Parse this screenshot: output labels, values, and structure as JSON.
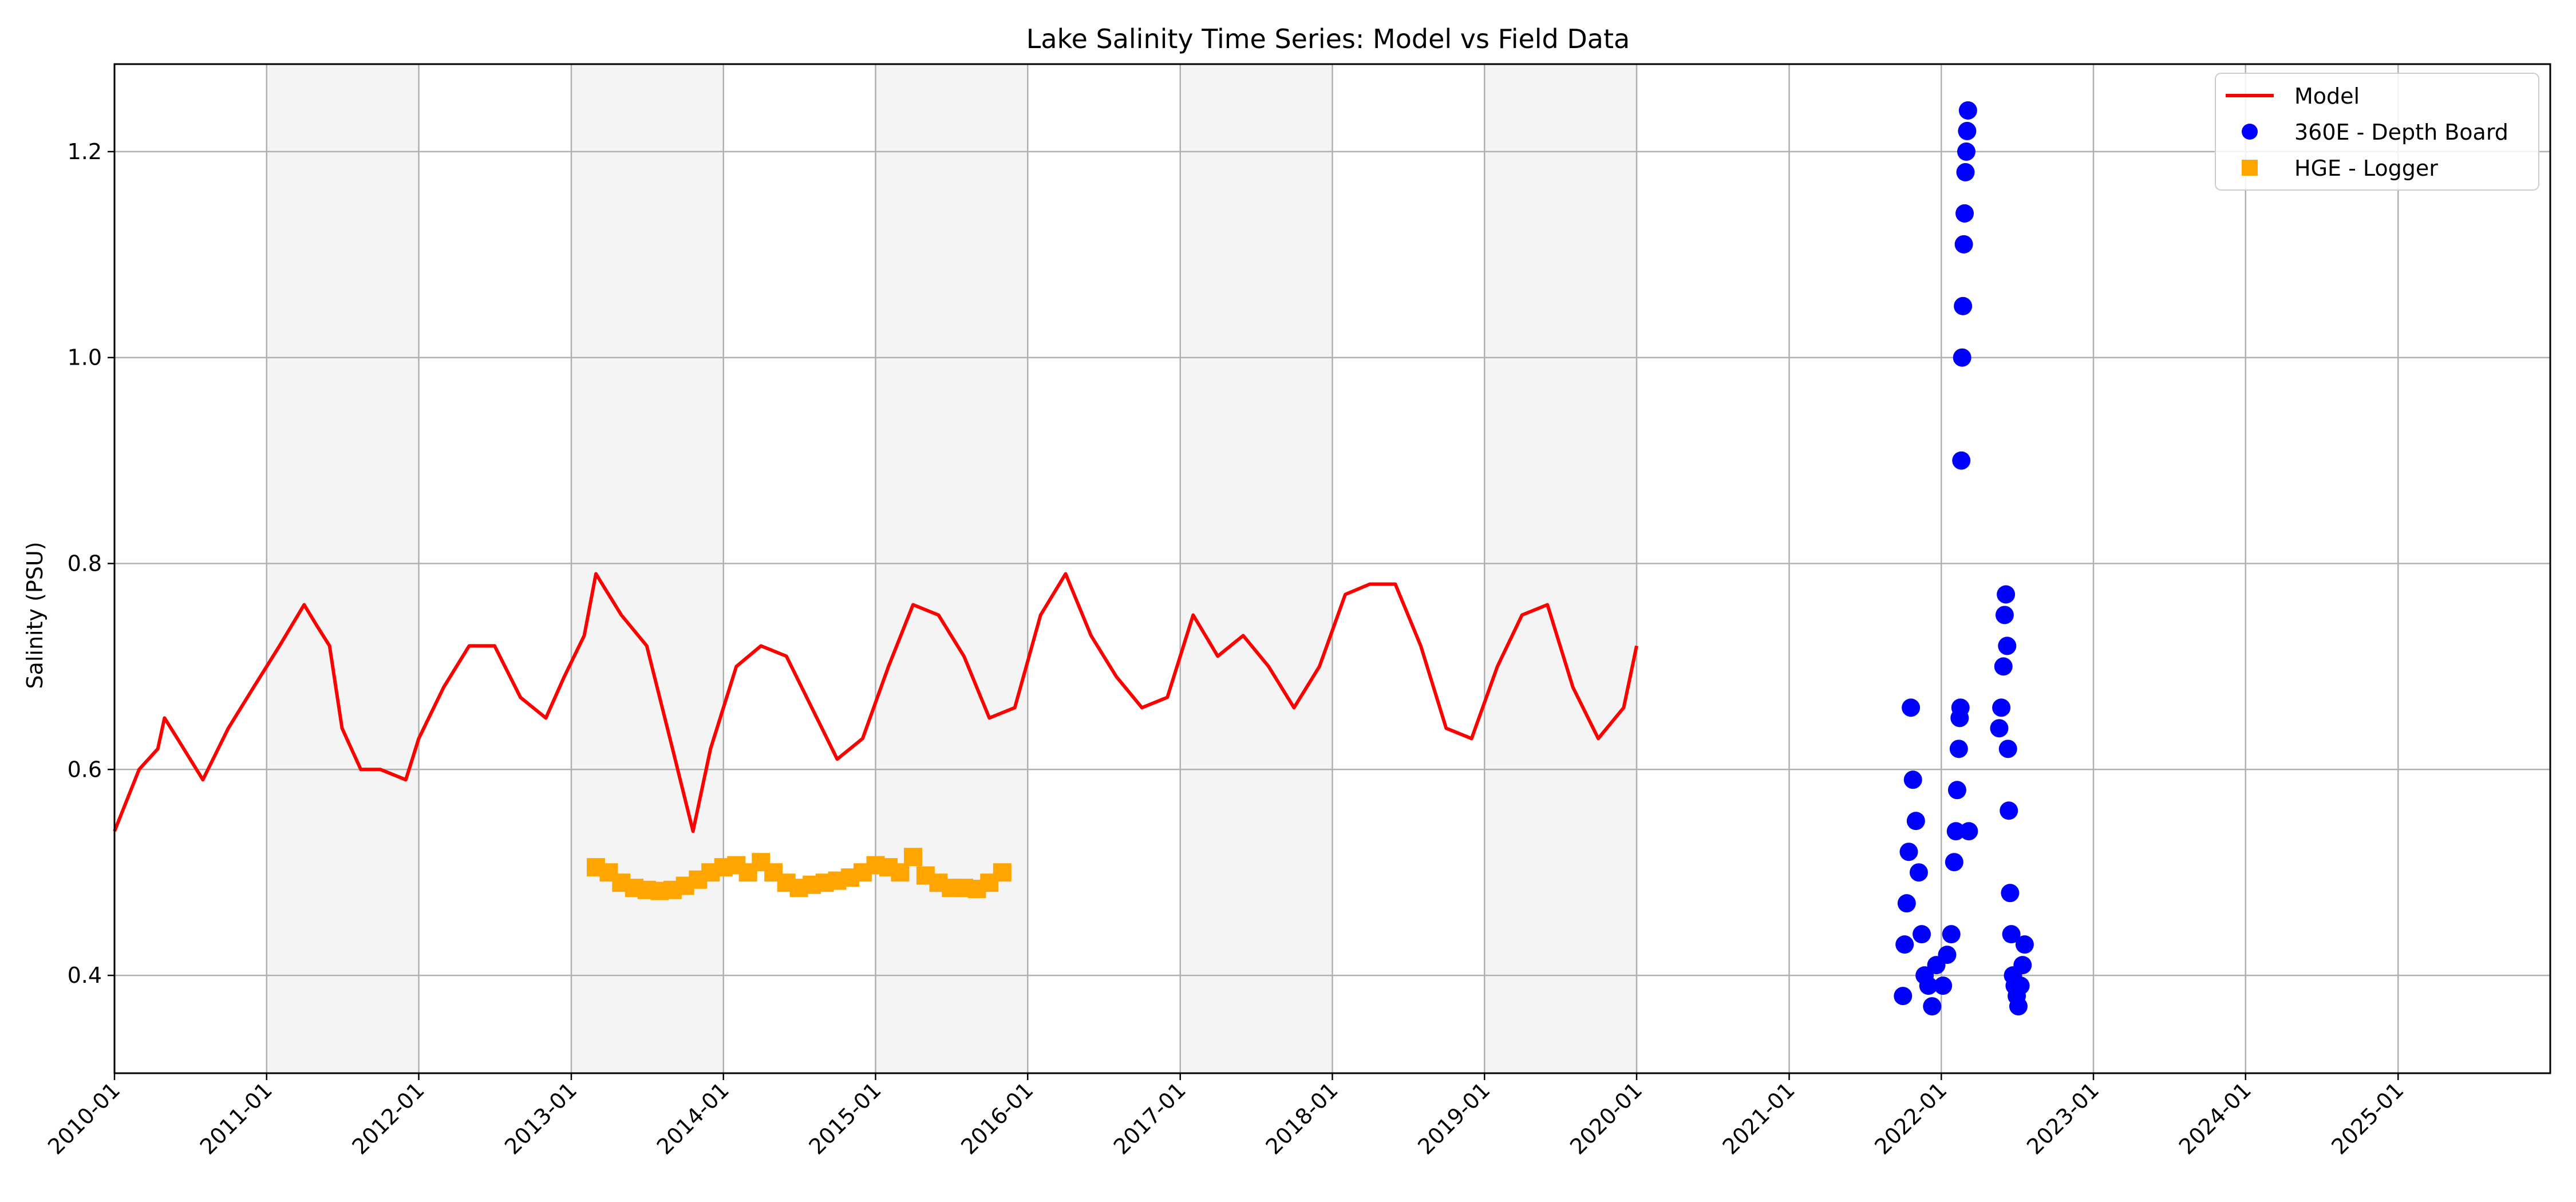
{
  "chart_data": {
    "type": "line",
    "title": "Lake Salinity Time Series: Model vs Field Data",
    "xlabel": "",
    "ylabel": "Salinity (PSU)",
    "xlim": [
      "2010-01",
      "2025-12"
    ],
    "ylim": [
      0.305,
      1.285
    ],
    "x_tick_labels": [
      "2010-01",
      "2011-01",
      "2012-01",
      "2013-01",
      "2014-01",
      "2015-01",
      "2016-01",
      "2017-01",
      "2018-01",
      "2019-01",
      "2020-01",
      "2021-01",
      "2022-01",
      "2023-01",
      "2024-01",
      "2025-01"
    ],
    "y_ticks": [
      0.4,
      0.6,
      0.8,
      1.0,
      1.2
    ],
    "y_tick_labels": [
      "0.4",
      "0.6",
      "0.8",
      "1.0",
      "1.2"
    ],
    "grid": true,
    "legend_position": "top-right",
    "shaded_years": [
      "2011",
      "2013",
      "2015",
      "2017",
      "2019"
    ],
    "shade_color": "#f4f4f4",
    "colors": {
      "model": "#ff0000",
      "depth_board": "#0000ff",
      "logger": "#ffa500",
      "grid": "#b0b0b0"
    },
    "series": [
      {
        "name": "Model",
        "kind": "line",
        "x": [
          "2010-01-01",
          "2010-03-01",
          "2010-04-15",
          "2010-05-01",
          "2010-06-01",
          "2010-08-01",
          "2010-10-01",
          "2010-12-01",
          "2011-02-01",
          "2011-04-01",
          "2011-05-01",
          "2011-06-01",
          "2011-07-01",
          "2011-08-15",
          "2011-10-01",
          "2011-12-01",
          "2012-01-01",
          "2012-03-01",
          "2012-05-01",
          "2012-07-01",
          "2012-09-01",
          "2012-11-01",
          "2012-12-15",
          "2013-02-01",
          "2013-03-01",
          "2013-05-01",
          "2013-07-01",
          "2013-09-01",
          "2013-10-20",
          "2013-12-01",
          "2014-02-01",
          "2014-04-01",
          "2014-06-01",
          "2014-08-01",
          "2014-10-01",
          "2014-12-01",
          "2015-02-01",
          "2015-04-01",
          "2015-06-01",
          "2015-08-01",
          "2015-10-01",
          "2015-12-01",
          "2016-02-01",
          "2016-04-01",
          "2016-06-01",
          "2016-08-01",
          "2016-10-01",
          "2016-12-01",
          "2017-02-01",
          "2017-04-01",
          "2017-06-01",
          "2017-08-01",
          "2017-10-01",
          "2017-12-01",
          "2018-02-01",
          "2018-04-01",
          "2018-06-01",
          "2018-08-01",
          "2018-10-01",
          "2018-12-01",
          "2019-02-01",
          "2019-04-01",
          "2019-06-01",
          "2019-08-01",
          "2019-10-01",
          "2019-12-01",
          "2020-01-01"
        ],
        "y": [
          0.54,
          0.6,
          0.62,
          0.65,
          0.63,
          0.59,
          0.64,
          0.68,
          0.72,
          0.76,
          0.74,
          0.72,
          0.64,
          0.6,
          0.6,
          0.59,
          0.63,
          0.68,
          0.72,
          0.72,
          0.67,
          0.65,
          0.69,
          0.73,
          0.79,
          0.75,
          0.72,
          0.62,
          0.54,
          0.62,
          0.7,
          0.72,
          0.71,
          0.66,
          0.61,
          0.63,
          0.7,
          0.76,
          0.75,
          0.71,
          0.65,
          0.66,
          0.75,
          0.79,
          0.73,
          0.69,
          0.66,
          0.67,
          0.75,
          0.71,
          0.73,
          0.7,
          0.66,
          0.7,
          0.77,
          0.78,
          0.78,
          0.72,
          0.64,
          0.63,
          0.7,
          0.75,
          0.76,
          0.68,
          0.63,
          0.66,
          0.72
        ]
      },
      {
        "name": "360E - Depth Board",
        "kind": "scatter",
        "x": [
          "2021-10-01",
          "2021-10-05",
          "2021-10-10",
          "2021-10-15",
          "2021-10-20",
          "2021-10-25",
          "2021-11-01",
          "2021-11-08",
          "2021-11-15",
          "2021-11-22",
          "2021-12-01",
          "2021-12-10",
          "2021-12-20",
          "2022-01-05",
          "2022-01-15",
          "2022-01-25",
          "2022-02-01",
          "2022-02-05",
          "2022-02-08",
          "2022-02-12",
          "2022-02-14",
          "2022-02-16",
          "2022-02-18",
          "2022-02-20",
          "2022-02-22",
          "2022-02-24",
          "2022-02-26",
          "2022-02-28",
          "2022-03-02",
          "2022-03-04",
          "2022-03-06",
          "2022-03-08",
          "2022-05-20",
          "2022-05-25",
          "2022-05-30",
          "2022-06-02",
          "2022-06-05",
          "2022-06-08",
          "2022-06-10",
          "2022-06-12",
          "2022-06-15",
          "2022-06-18",
          "2022-06-22",
          "2022-06-26",
          "2022-07-01",
          "2022-07-05",
          "2022-07-10",
          "2022-07-15",
          "2022-07-20"
        ],
        "y": [
          0.38,
          0.43,
          0.47,
          0.52,
          0.66,
          0.59,
          0.55,
          0.5,
          0.44,
          0.4,
          0.39,
          0.37,
          0.41,
          0.39,
          0.42,
          0.44,
          0.51,
          0.54,
          0.58,
          0.62,
          0.65,
          0.66,
          0.9,
          1.0,
          1.05,
          1.11,
          1.14,
          1.18,
          1.2,
          1.22,
          1.24,
          0.54,
          0.64,
          0.66,
          0.7,
          0.75,
          0.77,
          0.72,
          0.62,
          0.56,
          0.48,
          0.44,
          0.4,
          0.39,
          0.38,
          0.37,
          0.39,
          0.41,
          0.43
        ]
      },
      {
        "name": "HGE - Logger",
        "kind": "square",
        "x": [
          "2013-03-01",
          "2013-04-01",
          "2013-05-01",
          "2013-06-01",
          "2013-07-01",
          "2013-08-01",
          "2013-09-01",
          "2013-10-01",
          "2013-11-01",
          "2013-12-01",
          "2014-01-01",
          "2014-02-01",
          "2014-03-01",
          "2014-04-01",
          "2014-05-01",
          "2014-06-01",
          "2014-07-01",
          "2014-08-01",
          "2014-09-01",
          "2014-10-01",
          "2014-11-01",
          "2014-12-01",
          "2015-01-01",
          "2015-02-01",
          "2015-03-01",
          "2015-04-01",
          "2015-05-01",
          "2015-06-01",
          "2015-07-01",
          "2015-08-01",
          "2015-09-01",
          "2015-10-01",
          "2015-11-01"
        ],
        "y": [
          0.505,
          0.5,
          0.49,
          0.485,
          0.483,
          0.482,
          0.483,
          0.487,
          0.493,
          0.5,
          0.505,
          0.507,
          0.5,
          0.51,
          0.5,
          0.49,
          0.485,
          0.488,
          0.49,
          0.492,
          0.495,
          0.5,
          0.507,
          0.505,
          0.5,
          0.515,
          0.497,
          0.49,
          0.485,
          0.485,
          0.484,
          0.49,
          0.5
        ]
      }
    ]
  }
}
